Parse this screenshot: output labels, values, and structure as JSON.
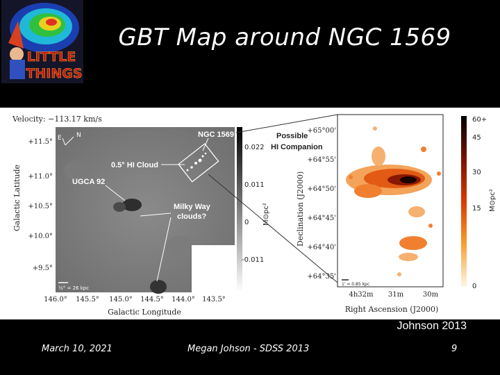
{
  "slide": {
    "title": "GBT Map around NGC 1569",
    "credit": "Johnson 2013",
    "footer_date": "March 10, 2021",
    "footer_center": "Megan Johson - SDSS 2013",
    "page_number": "9"
  },
  "logo": {
    "line1": "LITTLE",
    "line2": "THINGS"
  },
  "left_map": {
    "velocity": "Velocity: −113.17 km/s",
    "ylabel": "Galactic Latitude",
    "xlabel": "Galactic Longitude",
    "yticks": [
      "+11.5°",
      "+11.0°",
      "+10.5°",
      "+10.0°",
      "+9.5°"
    ],
    "xticks": [
      "146.0°",
      "145.5°",
      "145.0°",
      "144.5°",
      "144.0°",
      "143.5°"
    ],
    "scale_label": "½° = 26 kpc",
    "compass": [
      "N",
      "E"
    ],
    "annotations": {
      "ngc": "NGC 1569",
      "cloud": "0.5° HI Cloud",
      "ugca": "UGCA 92",
      "milky1": "Milky Way",
      "milky2": "clouds?"
    },
    "colorbar_ticks": [
      "0.022",
      "0.011",
      "0",
      "-0.011"
    ],
    "colorbar_label": "M⊙pc²"
  },
  "right_map": {
    "ylabel": "Declination (J2000)",
    "xlabel": "Right Ascension (J2000)",
    "yticks": [
      "+65°00'",
      "+64°55'",
      "+64°50'",
      "+64°45'",
      "+64°40'",
      "+64°35'"
    ],
    "xticks": [
      "4h32m",
      "31m",
      "30m"
    ],
    "scale_label": "1' = 0.85 kpc",
    "annotation1": "Possible",
    "annotation2": "HI Companion",
    "colorbar_ticks": [
      "60+",
      "45",
      "30",
      "15",
      "0"
    ],
    "colorbar_label": "M⊙pc²"
  }
}
